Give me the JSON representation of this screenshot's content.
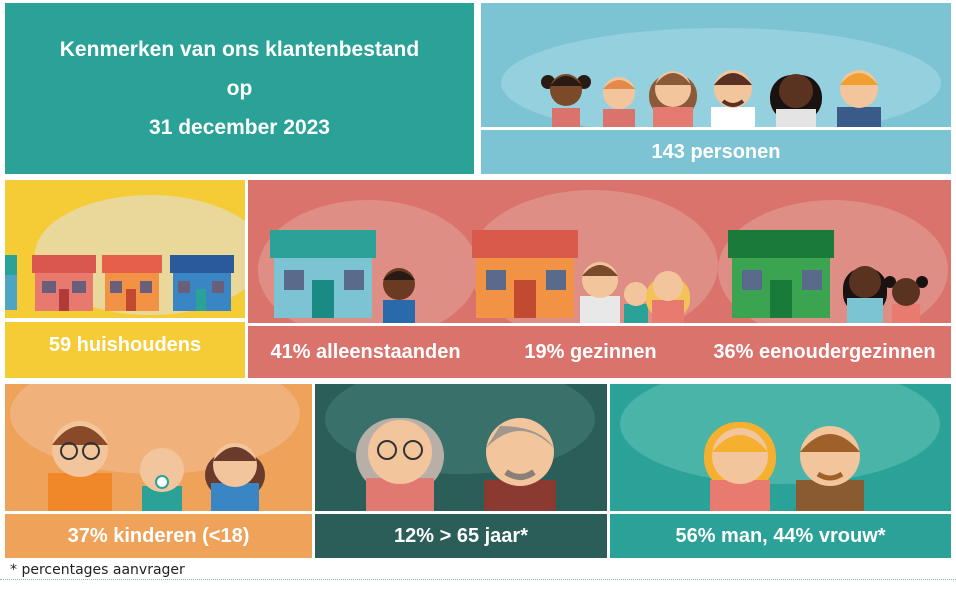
{
  "title": {
    "line1": "Kenmerken van ons klantenbestand",
    "line2": "op",
    "line3": "31 december 2023"
  },
  "persons": {
    "label": "143 personen"
  },
  "households": {
    "label": "59 huishoudens"
  },
  "household_types": {
    "singles": "41% alleenstaanden",
    "families": "19% gezinnen",
    "single_parents": "36% eenoudergezinnen"
  },
  "children": {
    "label": "37% kinderen (<18)"
  },
  "seniors": {
    "label": "12% > 65 jaar*"
  },
  "gender": {
    "label": "56% man, 44% vrouw*"
  },
  "footnote": "* percentages aanvrager",
  "colors": {
    "teal": "#2aa297",
    "light_blue": "#7cc4d4",
    "yellow": "#f5cc35",
    "salmon": "#d9736c",
    "orange": "#eea25a",
    "dark_teal": "#2b5e58",
    "sea_green": "#2aa297"
  }
}
